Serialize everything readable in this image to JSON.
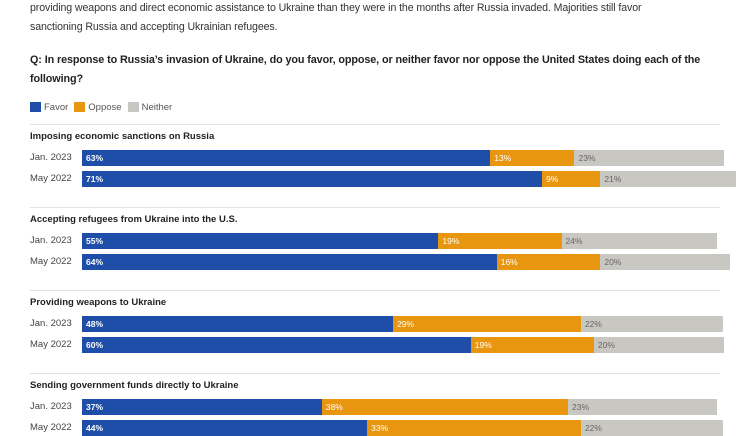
{
  "intro_lines": [
    "providing weapons and direct economic assistance to Ukraine than they were in the months after Russia invaded. Majorities still favor",
    "sanctioning Russia and accepting Ukrainian refugees."
  ],
  "question": "Q: In response to Russia’s invasion of Ukraine, do you favor, oppose, or neither favor nor oppose the United States doing each of the following?",
  "legend": [
    {
      "label": "Favor",
      "color": "#1f4ea8"
    },
    {
      "label": "Oppose",
      "color": "#e8960f"
    },
    {
      "label": "Neither",
      "color": "#c9c7c2"
    }
  ],
  "chart_data": {
    "type": "bar",
    "stacked": true,
    "orientation": "horizontal",
    "groups": [
      {
        "title": "Imposing economic sanctions on Russia",
        "rows": [
          {
            "label": "Jan. 2023",
            "favor": 63,
            "oppose": 13,
            "neither": 23
          },
          {
            "label": "May 2022",
            "favor": 71,
            "oppose": 9,
            "neither": 21
          }
        ]
      },
      {
        "title": "Accepting refugees from Ukraine into the U.S.",
        "rows": [
          {
            "label": "Jan. 2023",
            "favor": 55,
            "oppose": 19,
            "neither": 24
          },
          {
            "label": "May 2022",
            "favor": 64,
            "oppose": 16,
            "neither": 20
          }
        ]
      },
      {
        "title": "Providing weapons to Ukraine",
        "rows": [
          {
            "label": "Jan. 2023",
            "favor": 48,
            "oppose": 29,
            "neither": 22
          },
          {
            "label": "May 2022",
            "favor": 60,
            "oppose": 19,
            "neither": 20
          }
        ]
      },
      {
        "title": "Sending government funds directly to Ukraine",
        "rows": [
          {
            "label": "Jan. 2023",
            "favor": 37,
            "oppose": 38,
            "neither": 23
          },
          {
            "label": "May 2022",
            "favor": 44,
            "oppose": 33,
            "neither": 22
          }
        ]
      }
    ],
    "series": [
      {
        "name": "Favor",
        "key": "favor"
      },
      {
        "name": "Oppose",
        "key": "oppose"
      },
      {
        "name": "Neither",
        "key": "neither"
      }
    ],
    "value_suffix": "%"
  }
}
